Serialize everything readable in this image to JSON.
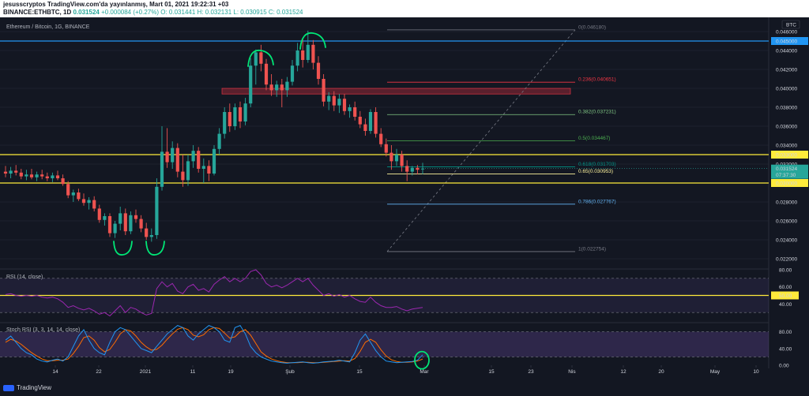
{
  "header": {
    "line1": "jesusscryptos TradingView.com'da yayınlanmış, Mart 01, 2021 19:22:31 +03",
    "symbol": "BINANCE:ETHBTC, 1D",
    "last": "0.031524",
    "change": "+0.000084 (+0.27%)",
    "open": "O: 0.031441",
    "high": "H: 0.032131",
    "low": "L: 0.030915",
    "close": "C: 0.031524"
  },
  "main_title": "Ethereum / Bitcoin, 1G, BINANCE",
  "currency_badge": "BTC",
  "price_axis": {
    "min": 0.021,
    "max": 0.047,
    "ticks": [
      "0.046000",
      "0.044000",
      "0.042000",
      "0.040000",
      "0.038000",
      "0.036000",
      "0.034000",
      "0.032000",
      "0.030000",
      "0.028000",
      "0.026000",
      "0.024000",
      "0.022000"
    ],
    "tick_values": [
      0.046,
      0.044,
      0.042,
      0.04,
      0.038,
      0.036,
      0.034,
      0.032,
      0.03,
      0.028,
      0.026,
      0.024,
      0.022
    ]
  },
  "horizontal_levels": [
    {
      "label": "0.045000",
      "value": 0.045,
      "color": "#2196f3"
    },
    {
      "label": "0.033000",
      "value": 0.033,
      "color": "#ffeb3b"
    },
    {
      "label": "0.030000",
      "value": 0.03,
      "color": "#ffeb3b"
    }
  ],
  "last_price_label": {
    "price": "0.031524",
    "countdown": "07:37:30",
    "color": "#26a69a"
  },
  "resistance_zone": {
    "from": 0.0394,
    "to": 0.04,
    "color": "#f23645"
  },
  "fib_levels": [
    {
      "label": "0(0.046180)",
      "value": 0.04618,
      "color": "#787b86"
    },
    {
      "label": "0.236(0.040651)",
      "value": 0.040651,
      "color": "#f23645"
    },
    {
      "label": "0.382(0.037231)",
      "value": 0.037231,
      "color": "#81c784"
    },
    {
      "label": "0.5(0.034467)",
      "value": 0.034467,
      "color": "#4caf50"
    },
    {
      "label": "0.618(0.031703)",
      "value": 0.031703,
      "color": "#009688"
    },
    {
      "label": "0.65(0.030953)",
      "value": 0.030953,
      "color": "#fff59d"
    },
    {
      "label": "0.786(0.027767)",
      "value": 0.027767,
      "color": "#64b5f6"
    },
    {
      "label": "1(0.022754)",
      "value": 0.022754,
      "color": "#787b86"
    }
  ],
  "x_axis_ticks": [
    "14",
    "22",
    "2021",
    "11",
    "19",
    "Şub",
    "15",
    "Mar",
    "15",
    "23",
    "Nis",
    "12",
    "20",
    "May",
    "10"
  ],
  "rsi": {
    "title": "RSI (14, close)",
    "ticks": [
      "80.00",
      "60.00",
      "40.00"
    ],
    "tick_values": [
      80,
      60,
      40
    ],
    "level_label": "50.00",
    "level_value": 50,
    "min": 20,
    "max": 80
  },
  "stoch": {
    "title": "Stoch RSI (3, 3, 14, 14, close)",
    "ticks": [
      "80.00",
      "40.00",
      "0.00"
    ],
    "tick_values": [
      80,
      40,
      0
    ],
    "min": 0,
    "max": 100
  },
  "footer_brand": "TradingView",
  "colors": {
    "up": "#26a69a",
    "down": "#ef5350",
    "annotation": "#00e676",
    "rsi_line": "#9c27b0",
    "stoch_k": "#2196f3",
    "stoch_d": "#ff6d00"
  },
  "chart_data": {
    "type": "candlestick",
    "title": "Ethereum / Bitcoin, 1G, BINANCE",
    "x_range": [
      "2020-12-01",
      "2021-05-12"
    ],
    "y_range": [
      0.021,
      0.047
    ],
    "candles": [
      {
        "o": 0.0312,
        "h": 0.0318,
        "l": 0.0306,
        "c": 0.031
      },
      {
        "o": 0.031,
        "h": 0.0317,
        "l": 0.0305,
        "c": 0.0313
      },
      {
        "o": 0.0313,
        "h": 0.0319,
        "l": 0.0308,
        "c": 0.0311
      },
      {
        "o": 0.0311,
        "h": 0.0315,
        "l": 0.0304,
        "c": 0.0307
      },
      {
        "o": 0.0307,
        "h": 0.0314,
        "l": 0.0303,
        "c": 0.0309
      },
      {
        "o": 0.0309,
        "h": 0.0315,
        "l": 0.0304,
        "c": 0.0306
      },
      {
        "o": 0.0306,
        "h": 0.0312,
        "l": 0.0302,
        "c": 0.0309
      },
      {
        "o": 0.0309,
        "h": 0.0314,
        "l": 0.0304,
        "c": 0.0307
      },
      {
        "o": 0.0307,
        "h": 0.0311,
        "l": 0.0302,
        "c": 0.0305
      },
      {
        "o": 0.0305,
        "h": 0.0311,
        "l": 0.0301,
        "c": 0.0308
      },
      {
        "o": 0.0308,
        "h": 0.0313,
        "l": 0.0303,
        "c": 0.0305
      },
      {
        "o": 0.0305,
        "h": 0.0309,
        "l": 0.0297,
        "c": 0.0299
      },
      {
        "o": 0.0299,
        "h": 0.0302,
        "l": 0.0284,
        "c": 0.0287
      },
      {
        "o": 0.0287,
        "h": 0.0293,
        "l": 0.028,
        "c": 0.029
      },
      {
        "o": 0.029,
        "h": 0.0294,
        "l": 0.0281,
        "c": 0.0283
      },
      {
        "o": 0.0283,
        "h": 0.0289,
        "l": 0.0276,
        "c": 0.0279
      },
      {
        "o": 0.0279,
        "h": 0.0285,
        "l": 0.0272,
        "c": 0.0282
      },
      {
        "o": 0.0282,
        "h": 0.0286,
        "l": 0.027,
        "c": 0.0273
      },
      {
        "o": 0.0273,
        "h": 0.0277,
        "l": 0.0258,
        "c": 0.0261
      },
      {
        "o": 0.0261,
        "h": 0.0268,
        "l": 0.0255,
        "c": 0.0265
      },
      {
        "o": 0.0265,
        "h": 0.0268,
        "l": 0.0243,
        "c": 0.0247
      },
      {
        "o": 0.0247,
        "h": 0.026,
        "l": 0.0242,
        "c": 0.0257
      },
      {
        "o": 0.0257,
        "h": 0.0275,
        "l": 0.025,
        "c": 0.0268
      },
      {
        "o": 0.0268,
        "h": 0.0273,
        "l": 0.0245,
        "c": 0.0249
      },
      {
        "o": 0.0249,
        "h": 0.027,
        "l": 0.0246,
        "c": 0.0266
      },
      {
        "o": 0.0266,
        "h": 0.0272,
        "l": 0.0258,
        "c": 0.0262
      },
      {
        "o": 0.0262,
        "h": 0.0266,
        "l": 0.0248,
        "c": 0.0252
      },
      {
        "o": 0.0252,
        "h": 0.0258,
        "l": 0.024,
        "c": 0.0243
      },
      {
        "o": 0.0243,
        "h": 0.0252,
        "l": 0.0238,
        "c": 0.0245
      },
      {
        "o": 0.0245,
        "h": 0.0305,
        "l": 0.0241,
        "c": 0.0296
      },
      {
        "o": 0.0296,
        "h": 0.036,
        "l": 0.0292,
        "c": 0.0333
      },
      {
        "o": 0.0333,
        "h": 0.0358,
        "l": 0.0316,
        "c": 0.0322
      },
      {
        "o": 0.0322,
        "h": 0.0344,
        "l": 0.0315,
        "c": 0.0337
      },
      {
        "o": 0.0337,
        "h": 0.0342,
        "l": 0.0306,
        "c": 0.0312
      },
      {
        "o": 0.0312,
        "h": 0.033,
        "l": 0.0296,
        "c": 0.0303
      },
      {
        "o": 0.0303,
        "h": 0.033,
        "l": 0.0297,
        "c": 0.0323
      },
      {
        "o": 0.0323,
        "h": 0.034,
        "l": 0.0316,
        "c": 0.0334
      },
      {
        "o": 0.0334,
        "h": 0.0338,
        "l": 0.0311,
        "c": 0.0315
      },
      {
        "o": 0.0315,
        "h": 0.0326,
        "l": 0.03,
        "c": 0.0318
      },
      {
        "o": 0.0318,
        "h": 0.0324,
        "l": 0.0302,
        "c": 0.031
      },
      {
        "o": 0.031,
        "h": 0.034,
        "l": 0.0308,
        "c": 0.0336
      },
      {
        "o": 0.0336,
        "h": 0.0358,
        "l": 0.033,
        "c": 0.0352
      },
      {
        "o": 0.0352,
        "h": 0.038,
        "l": 0.0347,
        "c": 0.0375
      },
      {
        "o": 0.0375,
        "h": 0.0384,
        "l": 0.0354,
        "c": 0.036
      },
      {
        "o": 0.036,
        "h": 0.0384,
        "l": 0.0356,
        "c": 0.038
      },
      {
        "o": 0.038,
        "h": 0.0386,
        "l": 0.0358,
        "c": 0.0365
      },
      {
        "o": 0.0365,
        "h": 0.039,
        "l": 0.0361,
        "c": 0.0384
      },
      {
        "o": 0.0384,
        "h": 0.0432,
        "l": 0.038,
        "c": 0.0424
      },
      {
        "o": 0.0424,
        "h": 0.0441,
        "l": 0.0404,
        "c": 0.0438
      },
      {
        "o": 0.0438,
        "h": 0.0446,
        "l": 0.0418,
        "c": 0.0426
      },
      {
        "o": 0.0426,
        "h": 0.0431,
        "l": 0.0398,
        "c": 0.0404
      },
      {
        "o": 0.0404,
        "h": 0.0415,
        "l": 0.0392,
        "c": 0.0398
      },
      {
        "o": 0.0398,
        "h": 0.0408,
        "l": 0.0391,
        "c": 0.0404
      },
      {
        "o": 0.0404,
        "h": 0.041,
        "l": 0.038,
        "c": 0.0398
      },
      {
        "o": 0.0398,
        "h": 0.0412,
        "l": 0.0391,
        "c": 0.0407
      },
      {
        "o": 0.0407,
        "h": 0.043,
        "l": 0.0403,
        "c": 0.0424
      },
      {
        "o": 0.0424,
        "h": 0.0448,
        "l": 0.0418,
        "c": 0.044
      },
      {
        "o": 0.044,
        "h": 0.0452,
        "l": 0.0422,
        "c": 0.043
      },
      {
        "o": 0.043,
        "h": 0.0461,
        "l": 0.0427,
        "c": 0.0446
      },
      {
        "o": 0.0446,
        "h": 0.0451,
        "l": 0.042,
        "c": 0.0427
      },
      {
        "o": 0.0427,
        "h": 0.0434,
        "l": 0.0404,
        "c": 0.041
      },
      {
        "o": 0.041,
        "h": 0.0415,
        "l": 0.0381,
        "c": 0.0386
      },
      {
        "o": 0.0386,
        "h": 0.0396,
        "l": 0.0377,
        "c": 0.0392
      },
      {
        "o": 0.0392,
        "h": 0.0397,
        "l": 0.0376,
        "c": 0.0382
      },
      {
        "o": 0.0382,
        "h": 0.0394,
        "l": 0.0374,
        "c": 0.0389
      },
      {
        "o": 0.0389,
        "h": 0.0394,
        "l": 0.0372,
        "c": 0.0376
      },
      {
        "o": 0.0376,
        "h": 0.0383,
        "l": 0.0369,
        "c": 0.038
      },
      {
        "o": 0.038,
        "h": 0.0386,
        "l": 0.0366,
        "c": 0.037
      },
      {
        "o": 0.037,
        "h": 0.0376,
        "l": 0.0358,
        "c": 0.0362
      },
      {
        "o": 0.0362,
        "h": 0.0368,
        "l": 0.035,
        "c": 0.0355
      },
      {
        "o": 0.0355,
        "h": 0.0378,
        "l": 0.0352,
        "c": 0.0375
      },
      {
        "o": 0.0375,
        "h": 0.038,
        "l": 0.0348,
        "c": 0.0352
      },
      {
        "o": 0.0352,
        "h": 0.0358,
        "l": 0.0338,
        "c": 0.0341
      },
      {
        "o": 0.0341,
        "h": 0.0347,
        "l": 0.0328,
        "c": 0.0332
      },
      {
        "o": 0.0332,
        "h": 0.034,
        "l": 0.0314,
        "c": 0.0323
      },
      {
        "o": 0.0323,
        "h": 0.0336,
        "l": 0.0318,
        "c": 0.033
      },
      {
        "o": 0.033,
        "h": 0.0334,
        "l": 0.0312,
        "c": 0.0318
      },
      {
        "o": 0.0318,
        "h": 0.0324,
        "l": 0.0302,
        "c": 0.0312
      },
      {
        "o": 0.0312,
        "h": 0.0318,
        "l": 0.0308,
        "c": 0.0316
      },
      {
        "o": 0.0316,
        "h": 0.0319,
        "l": 0.0309,
        "c": 0.0314
      },
      {
        "o": 0.031441,
        "h": 0.032131,
        "l": 0.030915,
        "c": 0.031524
      }
    ],
    "rsi_values": [
      51,
      52,
      50,
      49,
      50,
      49,
      50,
      48,
      47,
      48,
      46,
      42,
      36,
      38,
      35,
      33,
      35,
      32,
      28,
      30,
      26,
      32,
      38,
      30,
      36,
      34,
      30,
      27,
      29,
      58,
      66,
      60,
      64,
      55,
      52,
      60,
      63,
      56,
      58,
      54,
      63,
      68,
      72,
      66,
      70,
      66,
      70,
      78,
      80,
      74,
      64,
      60,
      62,
      59,
      62,
      66,
      70,
      66,
      70,
      62,
      56,
      50,
      52,
      49,
      51,
      48,
      50,
      46,
      43,
      42,
      48,
      42,
      38,
      36,
      36,
      37,
      34,
      32,
      34,
      35,
      36
    ],
    "stoch_k": [
      60,
      70,
      55,
      40,
      30,
      25,
      15,
      10,
      8,
      12,
      15,
      10,
      20,
      45,
      70,
      85,
      60,
      40,
      30,
      25,
      55,
      80,
      90,
      85,
      70,
      55,
      40,
      35,
      30,
      45,
      60,
      75,
      85,
      95,
      90,
      70,
      60,
      75,
      85,
      95,
      90,
      80,
      60,
      55,
      90,
      95,
      75,
      45,
      30,
      20,
      15,
      10,
      8,
      6,
      5,
      6,
      7,
      8,
      6,
      5,
      6,
      8,
      9,
      10,
      12,
      10,
      8,
      30,
      60,
      75,
      55,
      35,
      20,
      10,
      8,
      6,
      7,
      8,
      9,
      12,
      25
    ],
    "stoch_d": [
      55,
      62,
      58,
      50,
      40,
      30,
      22,
      15,
      11,
      11,
      12,
      12,
      15,
      28,
      45,
      66,
      70,
      60,
      42,
      32,
      38,
      55,
      75,
      85,
      82,
      70,
      55,
      44,
      36,
      38,
      48,
      62,
      75,
      86,
      90,
      85,
      72,
      68,
      73,
      85,
      90,
      88,
      77,
      65,
      68,
      80,
      85,
      72,
      52,
      32,
      22,
      15,
      11,
      8,
      6,
      6,
      6,
      7,
      7,
      6,
      6,
      7,
      8,
      9,
      10,
      11,
      10,
      16,
      33,
      55,
      62,
      55,
      37,
      22,
      13,
      9,
      7,
      7,
      8,
      10,
      15
    ]
  }
}
